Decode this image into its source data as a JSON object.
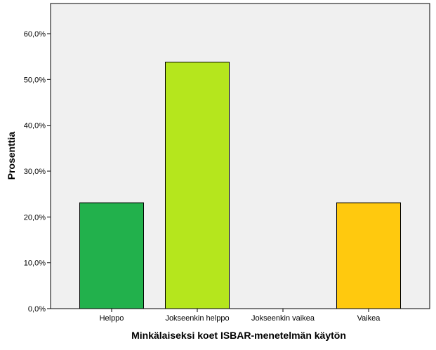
{
  "chart_data": {
    "type": "bar",
    "categories": [
      "Helppo",
      "Jokseenkin helppo",
      "Jokseenkin vaikea",
      "Vaikea"
    ],
    "values": [
      23.1,
      53.8,
      0,
      23.1
    ],
    "colors": [
      "#22b14c",
      "#b5e61d",
      "#ffffff",
      "#ffc90e"
    ],
    "xlabel": "Minkälaiseksi koet ISBAR-menetelmän käytön",
    "ylabel": "Prosenttia",
    "ylim": [
      0,
      60
    ],
    "yticks": [
      "0,0%",
      "10,0%",
      "20,0%",
      "30,0%",
      "40,0%",
      "50,0%",
      "60,0%"
    ],
    "ytick_values": [
      0,
      10,
      20,
      30,
      40,
      50,
      60
    ],
    "grid": false,
    "plot_background": "#f0f0f0",
    "bar_outline": "#000000"
  }
}
